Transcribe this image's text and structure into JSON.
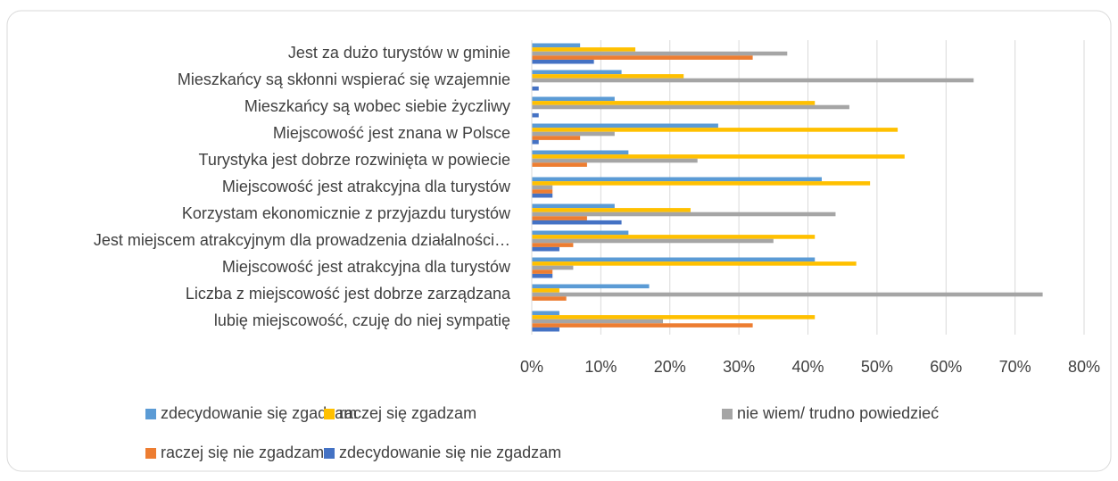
{
  "chart_data": {
    "type": "bar",
    "orientation": "horizontal",
    "categories": [
      "Jest za dużo turystów w gminie",
      "Mieszkańcy są skłonni wspierać się wzajemnie",
      "Mieszkańcy są wobec siebie życzliwy",
      "Miejscowość jest znana w Polsce",
      "Turystyka jest dobrze rozwinięta w powiecie",
      "Miejscowość jest atrakcyjna dla turystów",
      "Korzystam ekonomicznie z przyjazdu turystów",
      "Jest miejscem atrakcyjnym dla prowadzenia działalności…",
      "Miejscowość jest atrakcyjna dla turystów",
      "Liczba z miejscowość jest dobrze zarządzana",
      "lubię miejscowość, czuję do niej sympatię"
    ],
    "series": [
      {
        "name": "zdecydowanie się zgadzam",
        "color": "#5b9bd5",
        "values": [
          7,
          13,
          12,
          27,
          14,
          42,
          12,
          14,
          41,
          17,
          4
        ]
      },
      {
        "name": "raczej się zgadzam",
        "color": "#ffc000",
        "values": [
          15,
          22,
          41,
          53,
          54,
          49,
          23,
          41,
          47,
          4,
          41
        ]
      },
      {
        "name": "nie wiem/ trudno powiedzieć",
        "color": "#a5a5a5",
        "values": [
          37,
          64,
          46,
          12,
          24,
          3,
          44,
          35,
          6,
          74,
          19
        ]
      },
      {
        "name": "raczej się nie zgadzam",
        "color": "#ed7d31",
        "values": [
          32,
          0,
          0,
          7,
          8,
          3,
          8,
          6,
          3,
          5,
          32
        ]
      },
      {
        "name": "zdecydowanie się nie zgadzam",
        "color": "#4472c4",
        "values": [
          9,
          1,
          1,
          1,
          0,
          3,
          13,
          4,
          3,
          0,
          4
        ]
      }
    ],
    "xlim": [
      0,
      80
    ],
    "xticks": [
      {
        "value": 0,
        "label": "0%"
      },
      {
        "value": 10,
        "label": "10%"
      },
      {
        "value": 20,
        "label": "20%"
      },
      {
        "value": 30,
        "label": "30%"
      },
      {
        "value": 40,
        "label": "40%"
      },
      {
        "value": 50,
        "label": "50%"
      },
      {
        "value": 60,
        "label": "60%"
      },
      {
        "value": 70,
        "label": "70%"
      },
      {
        "value": 80,
        "label": "80%"
      }
    ],
    "grid": true,
    "legend": "bottom"
  }
}
